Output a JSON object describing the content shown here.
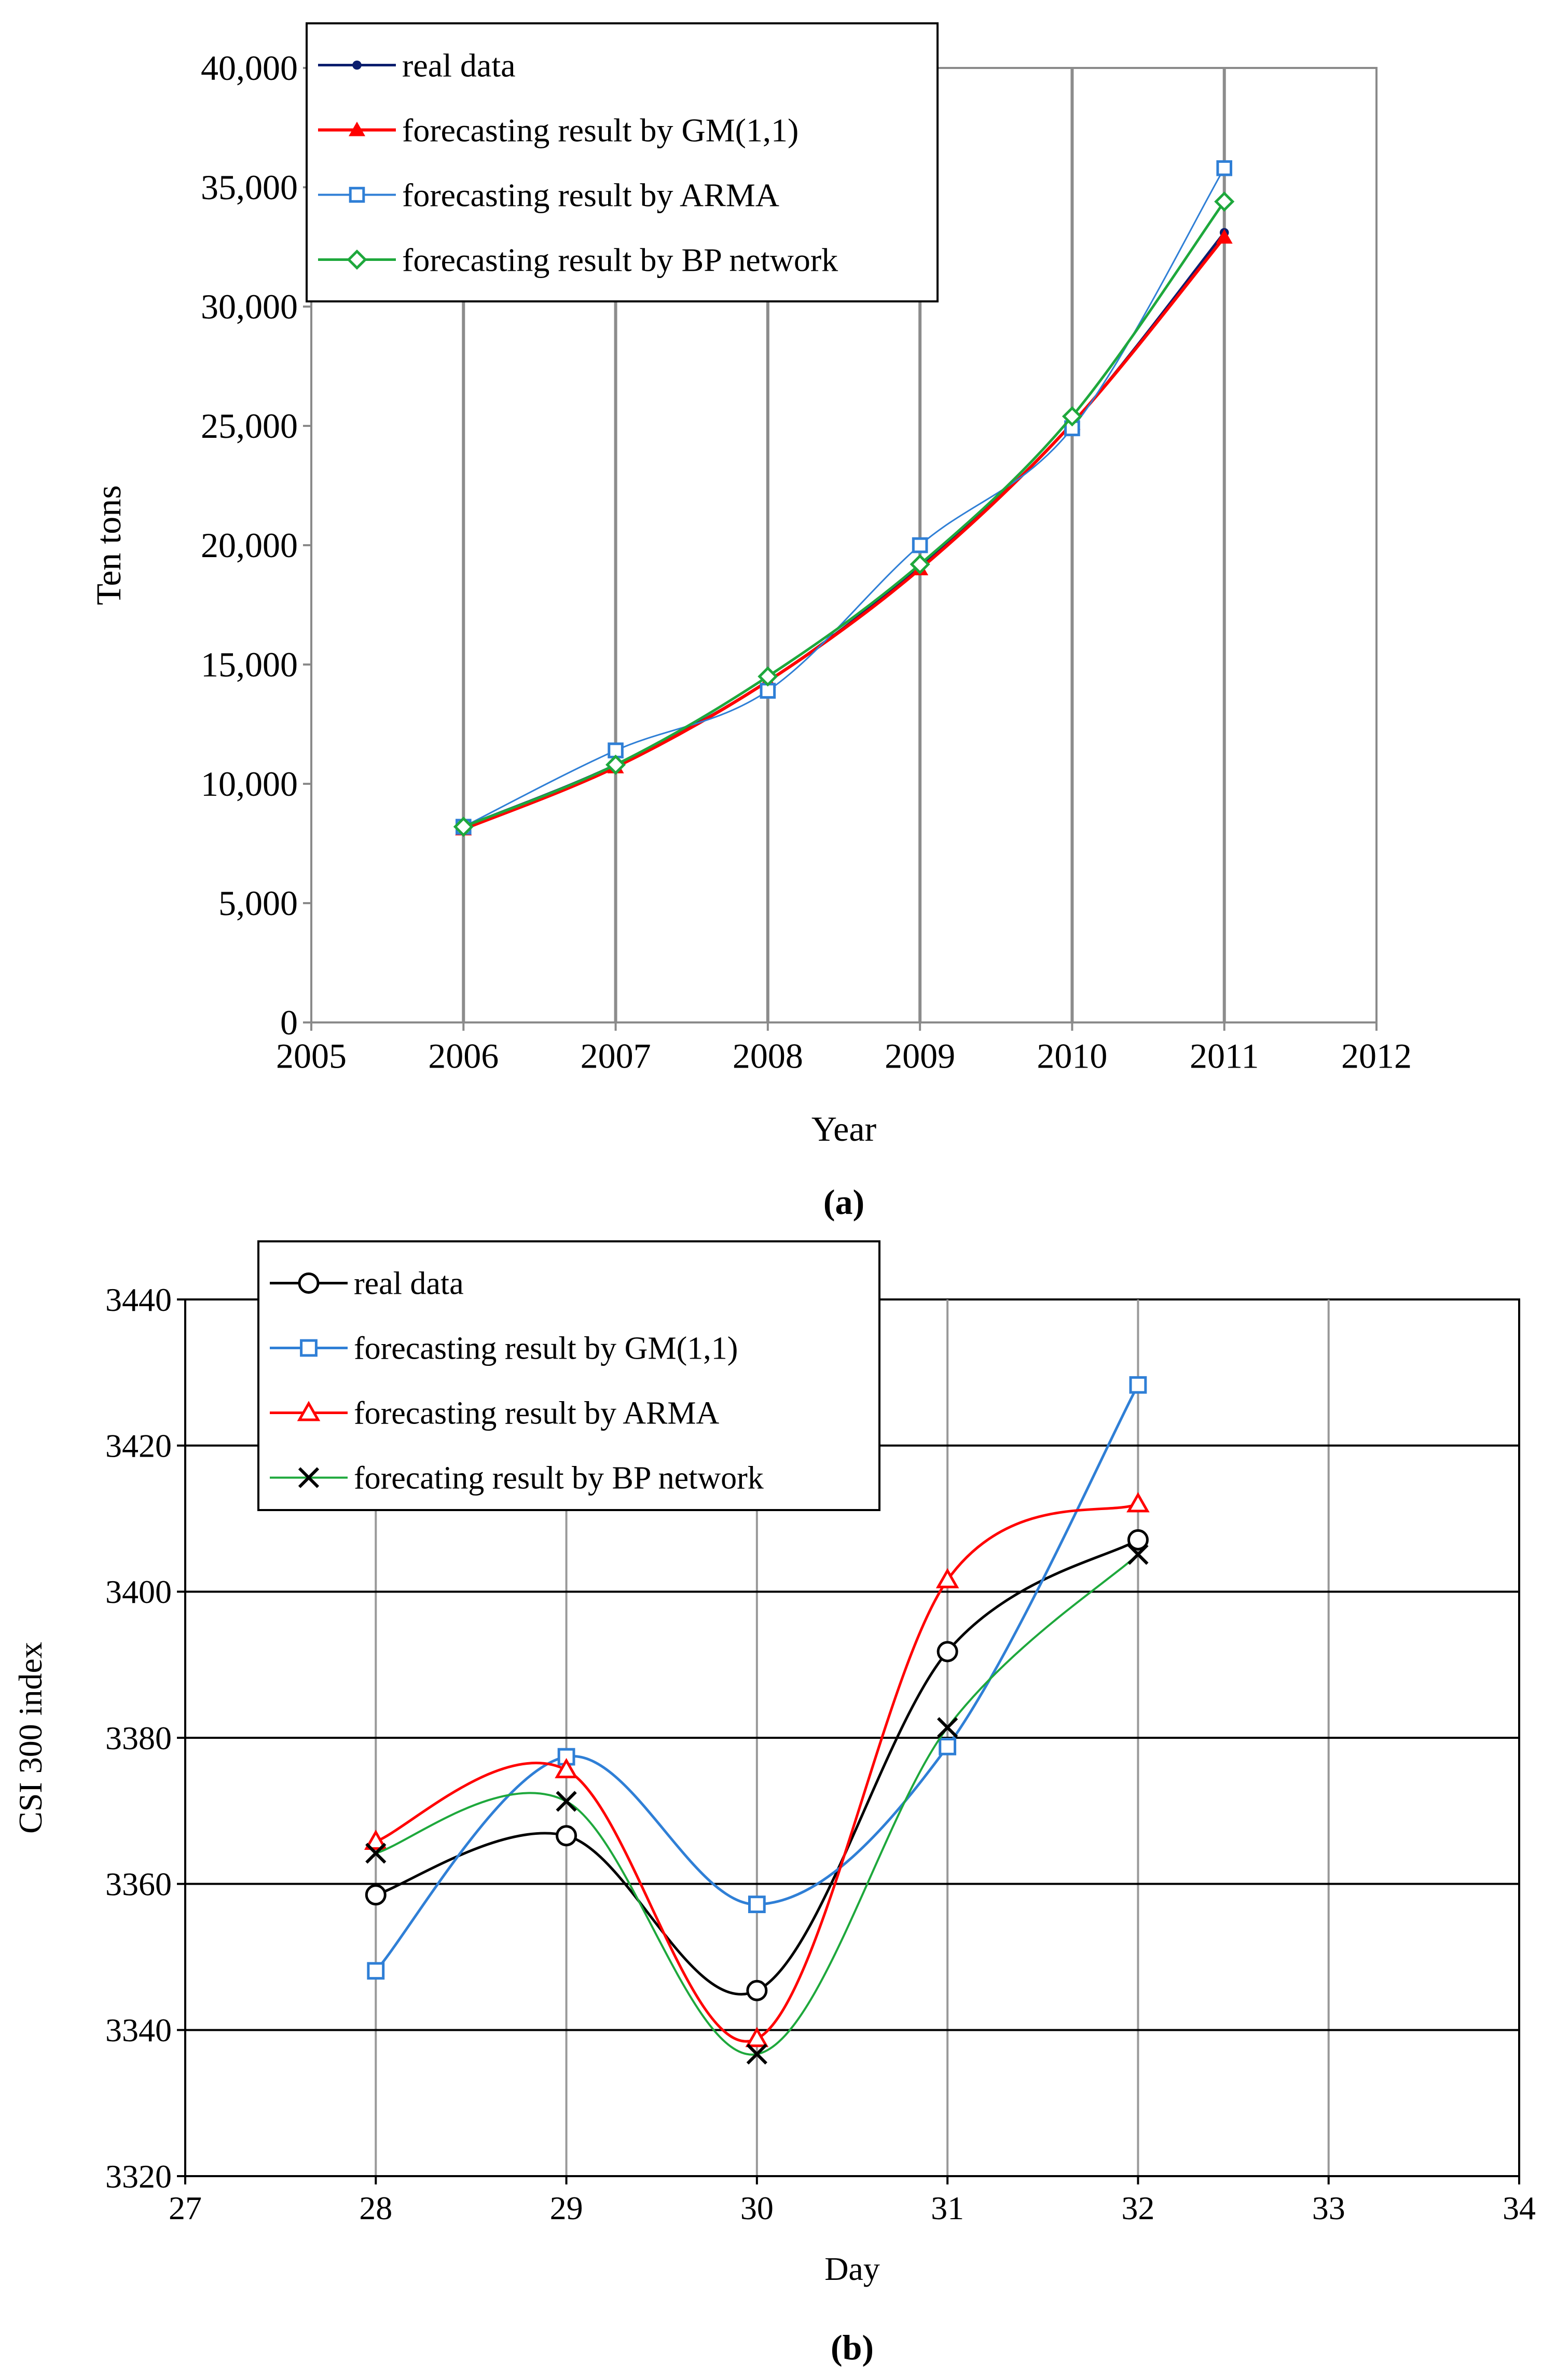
{
  "chart_data": [
    {
      "panel": "a",
      "caption": "(a)",
      "type": "line",
      "xlabel": "Year",
      "ylabel": "Ten tons",
      "xlim": [
        2005,
        2012
      ],
      "ylim": [
        0,
        40000
      ],
      "x_ticks": [
        2005,
        2006,
        2007,
        2008,
        2009,
        2010,
        2011,
        2012
      ],
      "y_ticks": [
        0,
        5000,
        10000,
        15000,
        20000,
        25000,
        30000,
        35000,
        40000
      ],
      "y_tick_labels": [
        "0",
        "5,000",
        "10,000",
        "15,000",
        "20,000",
        "25,000",
        "30,000",
        "35,000",
        "40,000"
      ],
      "grid": "vertical",
      "legend_position": "top-left",
      "x": [
        2006,
        2007,
        2008,
        2009,
        2010,
        2011
      ],
      "series": [
        {
          "name": "real data",
          "color": "#0b1e6e",
          "marker": "dot",
          "values": [
            8200,
            10800,
            14300,
            19100,
            25100,
            33100
          ]
        },
        {
          "name": "forecasting result by GM(1,1)",
          "color": "#ff0000",
          "marker": "triangle-filled",
          "values": [
            8100,
            10700,
            14300,
            19000,
            25100,
            32900
          ]
        },
        {
          "name": "forecasting result by ARMA",
          "color": "#2f7fd6",
          "marker": "square-open",
          "values": [
            8200,
            11400,
            13900,
            20000,
            24900,
            35800
          ]
        },
        {
          "name": "forecasting result by BP network",
          "color": "#1ea83c",
          "marker": "diamond-open",
          "values": [
            8200,
            10800,
            14500,
            19200,
            25400,
            34400
          ]
        }
      ]
    },
    {
      "panel": "b",
      "caption": "(b)",
      "type": "line",
      "xlabel": "Day",
      "ylabel": "CSI 300 index",
      "xlim": [
        27,
        34
      ],
      "ylim": [
        3320,
        3440
      ],
      "x_ticks": [
        27,
        28,
        29,
        30,
        31,
        32,
        33,
        34
      ],
      "y_ticks": [
        3320,
        3340,
        3360,
        3380,
        3400,
        3420,
        3440
      ],
      "y_tick_labels": [
        "3320",
        "3340",
        "3360",
        "3380",
        "3400",
        "3420",
        "3440"
      ],
      "grid": "both",
      "legend_position": "top-left",
      "x": [
        28,
        29,
        30,
        31,
        32
      ],
      "series": [
        {
          "name": "real data",
          "color": "#000000",
          "marker": "circle-open",
          "values": [
            3358.5,
            3366.6,
            3345.4,
            3391.8,
            3407.1
          ]
        },
        {
          "name": "forecasting result by GM(1,1)",
          "color": "#2f7fd6",
          "marker": "square-open",
          "values": [
            3348.1,
            3377.4,
            3357.2,
            3378.8,
            3428.3
          ]
        },
        {
          "name": "forecasting result by ARMA",
          "color": "#ff0000",
          "marker": "triangle-open",
          "values": [
            3365.8,
            3375.6,
            3338.8,
            3401.6,
            3412.0
          ]
        },
        {
          "name": "forecating result by BP network",
          "color": "#1ea83c",
          "line_color": "#1ea83c",
          "marker_color": "#000000",
          "marker": "x",
          "values": [
            3364.2,
            3371.3,
            3336.7,
            3381.4,
            3405.1
          ]
        }
      ]
    }
  ]
}
